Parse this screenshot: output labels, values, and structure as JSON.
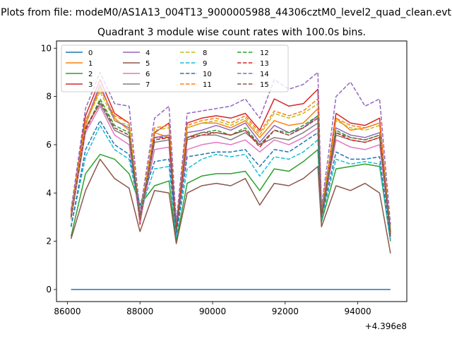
{
  "figure": {
    "suptitle": "Plots from file: modeM0/AS1A13_004T13_9000005988_44306cztM0_level2_quad_clean.evt",
    "title": "Quadrant 3 module wise count rates with 100.0s bins.",
    "x_offset_label": "+4.396e8"
  },
  "chart_data": {
    "type": "line",
    "title": "Quadrant 3 module wise count rates with 100.0s bins.",
    "xlabel": "",
    "ylabel": "",
    "x_offset": 439600000,
    "xlim": [
      85700,
      95350
    ],
    "ylim": [
      -0.5,
      10.3
    ],
    "x_ticks": [
      86000,
      88000,
      90000,
      92000,
      94000
    ],
    "y_ticks": [
      0,
      2,
      4,
      6,
      8,
      10
    ],
    "grid": false,
    "legend_placement": "upper-left",
    "legend_columns": 4,
    "x": [
      86100,
      86500,
      86900,
      87300,
      87700,
      88000,
      88400,
      88800,
      89000,
      89300,
      89700,
      90100,
      90500,
      90900,
      91300,
      91700,
      92100,
      92500,
      92900,
      93000,
      93400,
      93800,
      94200,
      94600,
      94900
    ],
    "series": [
      {
        "name": "0",
        "color": "#1f77b4",
        "dash": "solid",
        "values": [
          0,
          0,
          0,
          0,
          0,
          0,
          0,
          0,
          0,
          0,
          0,
          0,
          0,
          0,
          0,
          0,
          0,
          0,
          0,
          0,
          0,
          0,
          0,
          0,
          0
        ]
      },
      {
        "name": "1",
        "color": "#ff7f0e",
        "dash": "solid",
        "values": [
          3.2,
          6.8,
          8.4,
          7.1,
          6.6,
          2.9,
          6.5,
          6.3,
          2.4,
          6.7,
          6.9,
          6.9,
          6.7,
          7.0,
          6.3,
          7.0,
          6.8,
          6.9,
          7.5,
          3.1,
          7.1,
          6.6,
          6.7,
          6.9,
          2.3
        ]
      },
      {
        "name": "2",
        "color": "#2ca02c",
        "dash": "solid",
        "values": [
          2.2,
          4.8,
          5.6,
          5.4,
          4.8,
          3.5,
          4.3,
          4.5,
          2.0,
          4.4,
          4.7,
          4.8,
          4.8,
          4.9,
          4.1,
          5.0,
          4.9,
          5.3,
          5.8,
          2.8,
          5.0,
          5.1,
          5.2,
          5.1,
          2.0
        ]
      },
      {
        "name": "3",
        "color": "#d62728",
        "dash": "solid",
        "values": [
          3.1,
          7.2,
          8.7,
          7.3,
          6.9,
          2.7,
          6.5,
          6.9,
          2.5,
          6.9,
          7.1,
          7.2,
          7.1,
          7.3,
          6.6,
          7.9,
          7.6,
          7.7,
          8.3,
          3.0,
          7.3,
          6.9,
          6.8,
          7.1,
          2.2
        ]
      },
      {
        "name": "4",
        "color": "#9467bd",
        "dash": "solid",
        "values": [
          3.0,
          6.9,
          8.5,
          7.0,
          6.7,
          3.0,
          6.3,
          6.4,
          2.6,
          6.5,
          6.6,
          6.8,
          6.6,
          6.9,
          6.1,
          6.8,
          6.5,
          6.7,
          7.2,
          3.1,
          6.7,
          6.4,
          6.3,
          6.5,
          2.4
        ]
      },
      {
        "name": "5",
        "color": "#8c564b",
        "dash": "solid",
        "values": [
          2.1,
          4.1,
          5.4,
          4.6,
          4.2,
          2.4,
          4.1,
          4.0,
          1.9,
          4.0,
          4.3,
          4.4,
          4.3,
          4.6,
          3.5,
          4.4,
          4.3,
          4.6,
          5.1,
          2.6,
          4.3,
          4.1,
          4.4,
          4.0,
          1.5
        ]
      },
      {
        "name": "6",
        "color": "#e377c2",
        "dash": "solid",
        "values": [
          2.9,
          6.5,
          7.6,
          6.4,
          6.0,
          2.8,
          5.8,
          5.9,
          2.4,
          5.8,
          6.0,
          6.1,
          6.0,
          6.2,
          5.7,
          6.2,
          6.0,
          6.3,
          6.7,
          3.0,
          6.2,
          5.9,
          5.8,
          6.0,
          2.3
        ]
      },
      {
        "name": "7",
        "color": "#7f7f7f",
        "dash": "solid",
        "values": [
          3.0,
          6.7,
          7.7,
          6.6,
          6.3,
          2.9,
          6.1,
          6.2,
          2.5,
          6.2,
          6.4,
          6.4,
          6.2,
          6.5,
          6.0,
          6.3,
          6.2,
          6.5,
          6.9,
          3.1,
          6.4,
          6.2,
          6.1,
          6.3,
          2.4
        ]
      },
      {
        "name": "8",
        "color": "#bcbd22",
        "dash": "dashed",
        "values": [
          3.1,
          6.9,
          8.2,
          7.0,
          6.8,
          3.0,
          6.6,
          6.7,
          2.6,
          6.7,
          6.9,
          7.0,
          6.8,
          7.1,
          6.4,
          7.3,
          7.1,
          7.3,
          7.7,
          3.2,
          7.0,
          6.7,
          6.6,
          6.8,
          2.5
        ]
      },
      {
        "name": "9",
        "color": "#17becf",
        "dash": "dashed",
        "values": [
          2.6,
          5.5,
          6.8,
          5.8,
          5.4,
          3.2,
          5.0,
          5.1,
          2.2,
          5.0,
          5.4,
          5.6,
          5.5,
          5.6,
          4.7,
          5.5,
          5.4,
          5.7,
          6.2,
          2.9,
          5.4,
          5.2,
          5.3,
          5.2,
          2.0
        ]
      },
      {
        "name": "10",
        "color": "#1f77b4",
        "dash": "dashed",
        "values": [
          2.6,
          5.8,
          7.0,
          6.0,
          5.6,
          3.5,
          5.3,
          5.4,
          2.3,
          5.5,
          5.6,
          5.7,
          5.7,
          5.8,
          5.1,
          5.8,
          5.7,
          6.1,
          6.5,
          3.0,
          5.7,
          5.4,
          5.4,
          5.5,
          2.1
        ]
      },
      {
        "name": "11",
        "color": "#ff7f0e",
        "dash": "dashed",
        "values": [
          3.2,
          7.0,
          8.3,
          7.2,
          6.9,
          3.1,
          6.7,
          6.8,
          2.7,
          6.8,
          7.0,
          7.1,
          6.9,
          7.2,
          6.5,
          7.4,
          7.2,
          7.4,
          7.9,
          3.3,
          7.1,
          6.8,
          6.7,
          6.9,
          2.6
        ]
      },
      {
        "name": "12",
        "color": "#2ca02c",
        "dash": "dashed",
        "values": [
          3.0,
          6.6,
          7.9,
          6.8,
          6.5,
          3.0,
          6.2,
          6.3,
          2.5,
          6.3,
          6.5,
          6.6,
          6.4,
          6.7,
          6.0,
          6.6,
          6.5,
          6.8,
          7.2,
          3.1,
          6.6,
          6.3,
          6.2,
          6.4,
          2.4
        ]
      },
      {
        "name": "13",
        "color": "#d62728",
        "dash": "dashed",
        "values": [
          3.0,
          6.6,
          7.8,
          6.7,
          6.4,
          2.9,
          6.2,
          6.3,
          2.5,
          6.3,
          6.4,
          6.5,
          6.4,
          6.6,
          5.9,
          6.6,
          6.4,
          6.7,
          7.1,
          3.0,
          6.5,
          6.2,
          6.1,
          6.3,
          2.3
        ]
      },
      {
        "name": "14",
        "color": "#9467bd",
        "dash": "dashed",
        "values": [
          3.3,
          7.5,
          9.0,
          7.7,
          7.6,
          3.2,
          7.1,
          7.6,
          2.8,
          7.3,
          7.4,
          7.5,
          7.6,
          7.9,
          7.1,
          8.7,
          8.3,
          8.5,
          9.0,
          3.4,
          8.0,
          8.6,
          7.6,
          7.9,
          2.7
        ]
      },
      {
        "name": "15",
        "color": "#8c564b",
        "dash": "dashed",
        "values": [
          3.0,
          6.7,
          7.8,
          6.7,
          6.4,
          2.9,
          6.3,
          6.3,
          2.5,
          6.3,
          6.5,
          6.5,
          6.4,
          6.6,
          6.0,
          6.6,
          6.4,
          6.7,
          7.1,
          3.0,
          6.5,
          6.3,
          6.2,
          6.4,
          2.3
        ]
      }
    ]
  }
}
